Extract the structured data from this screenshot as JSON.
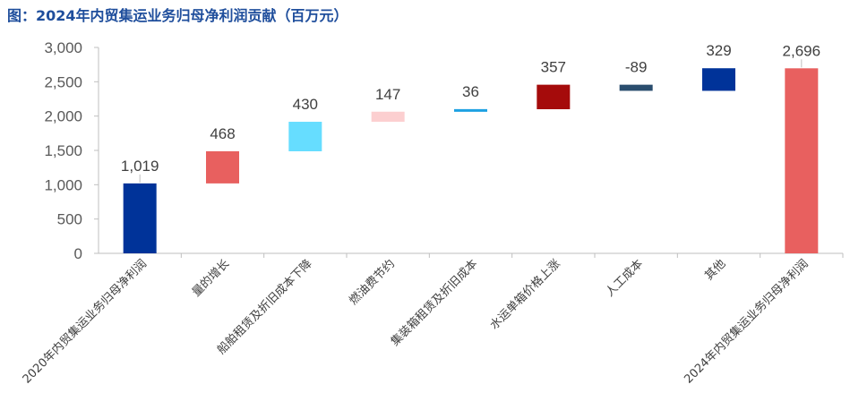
{
  "chart_data": {
    "type": "bar",
    "variant": "waterfall",
    "title": "图：2024年内贸集运业务归母净利润贡献（百万元）",
    "ylim": [
      0,
      3000
    ],
    "yticks": [
      "0",
      "500",
      "1,000",
      "1,500",
      "2,000",
      "2,500",
      "3,000"
    ],
    "grid": false,
    "legend": "none",
    "bars": [
      {
        "category": "2020年内贸集运业务归母净利润",
        "value": 1019,
        "label": "1,019",
        "start": 0,
        "end": 1019,
        "color": "#003399"
      },
      {
        "category": "量的增长",
        "value": 468,
        "label": "468",
        "start": 1019,
        "end": 1487,
        "color": "#e8605f"
      },
      {
        "category": "船舶租赁及折旧成本下降",
        "value": 430,
        "label": "430",
        "start": 1487,
        "end": 1917,
        "color": "#66ddff"
      },
      {
        "category": "燃油费节约",
        "value": 147,
        "label": "147",
        "start": 1917,
        "end": 2064,
        "color": "#fccfd0"
      },
      {
        "category": "集装箱租赁及折旧成本",
        "value": 36,
        "label": "36",
        "start": 2064,
        "end": 2100,
        "color": "#1da1e2"
      },
      {
        "category": "水运单箱价格上涨",
        "value": 357,
        "label": "357",
        "start": 2100,
        "end": 2457,
        "color": "#a50b0b"
      },
      {
        "category": "人工成本",
        "value": -89,
        "label": "-89",
        "start": 2457,
        "end": 2368,
        "color": "#2a4d6e"
      },
      {
        "category": "其他",
        "value": 329,
        "label": "329",
        "start": 2368,
        "end": 2697,
        "color": "#003399"
      },
      {
        "category": "2024年内贸集运业务归母净利润",
        "value": 2696,
        "label": "2,696",
        "start": 0,
        "end": 2696,
        "color": "#e8605f"
      }
    ]
  }
}
